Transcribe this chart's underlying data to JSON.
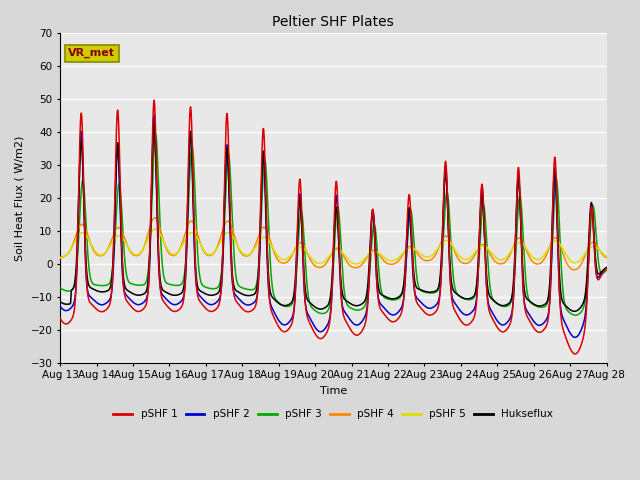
{
  "title": "Peltier SHF Plates",
  "xlabel": "Time",
  "ylabel": "Soil Heat Flux ( W/m2)",
  "ylim": [
    -30,
    70
  ],
  "xlim": [
    0,
    15
  ],
  "xtick_labels": [
    "Aug 13",
    "Aug 14",
    "Aug 15",
    "Aug 16",
    "Aug 17",
    "Aug 18",
    "Aug 19",
    "Aug 20",
    "Aug 21",
    "Aug 22",
    "Aug 23",
    "Aug 24",
    "Aug 25",
    "Aug 26",
    "Aug 27",
    "Aug 28"
  ],
  "series_colors": {
    "pSHF 1": "#dd0000",
    "pSHF 2": "#0000cc",
    "pSHF 3": "#00aa00",
    "pSHF 4": "#ff8800",
    "pSHF 5": "#dddd00",
    "Hukseflux": "#000000"
  },
  "annotation_text": "VR_met",
  "annotation_box_facecolor": "#cccc00",
  "annotation_box_edgecolor": "#888800",
  "background_color": "#e8e8e8",
  "grid_color": "#ffffff",
  "figsize": [
    6.4,
    4.8
  ],
  "dpi": 100
}
